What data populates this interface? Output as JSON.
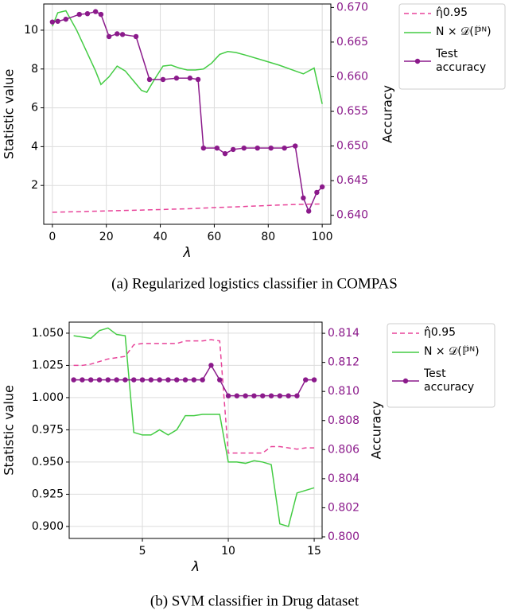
{
  "chart_data": [
    {
      "type": "line",
      "caption": "(a)  Regularized logistics classifier in COMPAS",
      "xlabel": "λ",
      "ylabel": "Statistic value",
      "y2label": "Accuracy",
      "xlim": [
        -3.2,
        103.2
      ],
      "xticks": [
        0,
        20,
        40,
        60,
        80,
        100
      ],
      "ylim": [
        0,
        11.35
      ],
      "yticks": [
        2,
        4,
        6,
        8,
        10
      ],
      "y2lim": [
        0.6387,
        0.6705
      ],
      "y2ticks": [
        {
          "value": 0.64,
          "label": "0.640"
        },
        0.645,
        {
          "value": 0.65,
          "label": "0.650"
        },
        0.655,
        {
          "value": 0.66,
          "label": "0.660"
        },
        0.665,
        {
          "value": 0.67,
          "label": "0.670"
        }
      ],
      "grid": true,
      "legend": "outside right",
      "series": [
        {
          "name": "η̂0.95",
          "color": "#e8449a",
          "dash": true,
          "x": [
            0,
            10,
            20,
            30,
            40,
            50,
            60,
            70,
            80,
            90,
            100
          ],
          "values": [
            0.62,
            0.65,
            0.69,
            0.72,
            0.76,
            0.8,
            0.86,
            0.91,
            0.97,
            1.02,
            1.05
          ]
        },
        {
          "name": "N × 𝒟(ℙ̂ᴺ)",
          "color": "#44cc44",
          "x": [
            0,
            2,
            5,
            9,
            13,
            16,
            18,
            21,
            24,
            27,
            30,
            33,
            35,
            38,
            41,
            44,
            47,
            50,
            53,
            56,
            59,
            62,
            65,
            68,
            72,
            78,
            84,
            90,
            93,
            97,
            100
          ],
          "values": [
            10.2,
            10.9,
            11.0,
            10.0,
            8.8,
            7.9,
            7.2,
            7.6,
            8.15,
            7.9,
            7.4,
            6.9,
            6.8,
            7.5,
            8.15,
            8.2,
            8.05,
            7.95,
            7.95,
            8.0,
            8.3,
            8.75,
            8.9,
            8.85,
            8.7,
            8.45,
            8.2,
            7.9,
            7.75,
            8.05,
            6.2
          ]
        },
        {
          "name": "Test accuracy",
          "color": "#8b1a8b",
          "axis": "y2",
          "marker": true,
          "x": [
            0,
            2,
            5,
            10,
            13,
            16,
            18,
            21,
            24,
            26,
            31,
            36,
            41,
            46,
            51,
            54,
            56,
            61,
            64,
            67,
            71,
            76,
            81,
            86,
            90,
            93,
            95,
            98,
            100
          ],
          "values": [
            0.6679,
            0.668,
            0.6683,
            0.669,
            0.6691,
            0.6694,
            0.669,
            0.6658,
            0.6662,
            0.6661,
            0.6658,
            0.6596,
            0.6596,
            0.6598,
            0.6598,
            0.6596,
            0.6497,
            0.6497,
            0.6489,
            0.6495,
            0.6497,
            0.6497,
            0.6497,
            0.6497,
            0.65,
            0.6425,
            0.6406,
            0.6433,
            0.6441
          ]
        }
      ]
    },
    {
      "type": "line",
      "caption": "(b)  SVM classifier in Drug dataset",
      "xlabel": "λ",
      "ylabel": "Statistic value",
      "y2label": "Accuracy",
      "xlim": [
        0.74,
        15.46
      ],
      "xticks": [
        5,
        10,
        15
      ],
      "ylim": [
        0.8907,
        1.0586
      ],
      "yticks": [
        {
          "value": 0.9,
          "label": "0.900"
        },
        0.925,
        {
          "value": 0.95,
          "label": "0.950"
        },
        0.975,
        {
          "value": 1.0,
          "label": "1.000"
        },
        1.025,
        {
          "value": 1.05,
          "label": "1.050"
        }
      ],
      "y2lim": [
        0.79989,
        0.81477
      ],
      "y2ticks": [
        {
          "value": 0.8,
          "label": "0.800"
        },
        0.802,
        0.804,
        0.806,
        0.808,
        {
          "value": 0.81,
          "label": "0.810"
        },
        0.812,
        0.814
      ],
      "grid": true,
      "legend": "outside right",
      "x": [
        1,
        1.5,
        2,
        2.5,
        3,
        3.5,
        4,
        4.5,
        5,
        5.5,
        6,
        6.5,
        7,
        7.5,
        8,
        8.5,
        9,
        9.5,
        10,
        10.5,
        11,
        11.5,
        12,
        12.5,
        13,
        13.5,
        14,
        14.5,
        15
      ],
      "series": [
        {
          "name": "η̂0.95",
          "color": "#e8449a",
          "dash": true,
          "values": [
            1.025,
            1.025,
            1.026,
            1.028,
            1.03,
            1.031,
            1.032,
            1.041,
            1.042,
            1.042,
            1.042,
            1.042,
            1.042,
            1.044,
            1.044,
            1.044,
            1.045,
            1.044,
            0.957,
            0.957,
            0.957,
            0.957,
            0.957,
            0.962,
            0.962,
            0.961,
            0.96,
            0.961,
            0.961
          ]
        },
        {
          "name": "N × 𝒟(ℙ̂ᴺ)",
          "color": "#44cc44",
          "values": [
            1.048,
            1.047,
            1.046,
            1.052,
            1.054,
            1.049,
            1.048,
            0.973,
            0.971,
            0.971,
            0.975,
            0.971,
            0.975,
            0.986,
            0.986,
            0.987,
            0.987,
            0.987,
            0.95,
            0.95,
            0.949,
            0.951,
            0.95,
            0.948,
            0.902,
            0.9,
            0.926,
            0.928,
            0.93
          ]
        },
        {
          "name": "Test accuracy",
          "color": "#8b1a8b",
          "axis": "y2",
          "marker": true,
          "values": [
            0.8108,
            0.8108,
            0.8108,
            0.8108,
            0.8108,
            0.8108,
            0.8108,
            0.8108,
            0.8108,
            0.8108,
            0.8108,
            0.8108,
            0.8108,
            0.8108,
            0.8108,
            0.8108,
            0.8118,
            0.8108,
            0.8097,
            0.8097,
            0.8097,
            0.8097,
            0.8097,
            0.8097,
            0.8097,
            0.8097,
            0.8097,
            0.8108,
            0.8108
          ]
        }
      ]
    }
  ]
}
